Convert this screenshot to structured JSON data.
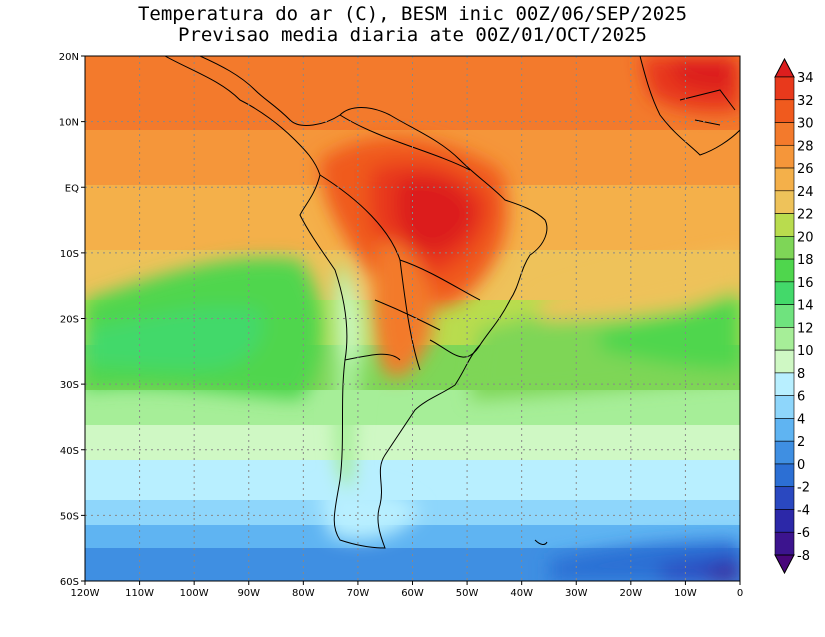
{
  "title_line1": "Temperatura do ar (C), BESM inic 00Z/06/SEP/2025",
  "title_line2": "Previsao media diaria ate 00Z/01/OCT/2025",
  "map": {
    "lon_labels": [
      "120W",
      "110W",
      "100W",
      "90W",
      "80W",
      "70W",
      "60W",
      "50W",
      "40W",
      "30W",
      "20W",
      "10W",
      "0"
    ],
    "lat_labels": [
      "20N",
      "10N",
      "EQ",
      "10S",
      "20S",
      "30S",
      "40S",
      "50S",
      "60S"
    ],
    "lon_range": [
      -120,
      0
    ],
    "lat_range": [
      -60,
      20
    ]
  },
  "colorbar": {
    "labels": [
      "34",
      "32",
      "30",
      "28",
      "26",
      "24",
      "22",
      "20",
      "18",
      "16",
      "14",
      "12",
      "10",
      "8",
      "6",
      "4",
      "2",
      "0",
      "-2",
      "-4",
      "-6",
      "-8"
    ],
    "colors": [
      "#dc1e1e",
      "#e8391c",
      "#f05a1e",
      "#f37a2c",
      "#f5963a",
      "#f4b04a",
      "#eec25a",
      "#b9dc4e",
      "#7ed657",
      "#4fd64d",
      "#43d96a",
      "#6fe37e",
      "#a6ee98",
      "#cff8c4",
      "#b8efff",
      "#8ed6fb",
      "#5fb4f2",
      "#3f8fe2",
      "#2c6fd4",
      "#2a48c0",
      "#2c28a8",
      "#3c148e",
      "#48067a"
    ]
  }
}
